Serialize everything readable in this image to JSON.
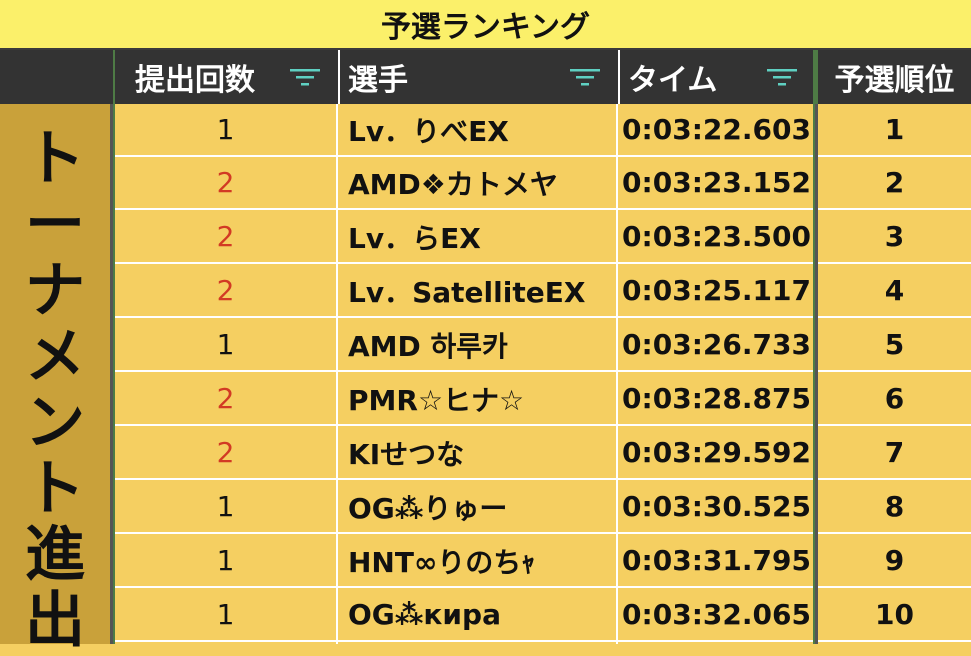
{
  "title": "予選ランキング",
  "side_label": [
    "ト",
    "ー",
    "ナ",
    "メ",
    "ン",
    "ト",
    "進",
    "出"
  ],
  "headers": {
    "submissions": "提出回数",
    "player": "選手",
    "time": "タイム",
    "rank": "予選順位"
  },
  "icons": {
    "filter": "filter-icon"
  },
  "colors": {
    "title_bg": "#fbf06a",
    "header_bg": "#333333",
    "cell_bg": "#f5cf61",
    "side_bg": "#c9a13a",
    "red_count": "#d23a24"
  },
  "rows": [
    {
      "count": "1",
      "name": "Lv．りべEX",
      "time": "0:03:22.603",
      "rank": "1"
    },
    {
      "count": "2",
      "name": "AMD❖カトメヤ",
      "time": "0:03:23.152",
      "rank": "2"
    },
    {
      "count": "2",
      "name": "Lv．らEX",
      "time": "0:03:23.500",
      "rank": "3"
    },
    {
      "count": "2",
      "name": "Lv．SatelliteEX",
      "time": "0:03:25.117",
      "rank": "4"
    },
    {
      "count": "1",
      "name": "AMD 하루카",
      "time": "0:03:26.733",
      "rank": "5"
    },
    {
      "count": "2",
      "name": "PMR☆ヒナ☆",
      "time": "0:03:28.875",
      "rank": "6"
    },
    {
      "count": "2",
      "name": "KIせつな",
      "time": "0:03:29.592",
      "rank": "7"
    },
    {
      "count": "1",
      "name": "OG⁂りゅー",
      "time": "0:03:30.525",
      "rank": "8"
    },
    {
      "count": "1",
      "name": "HNT∞りのちｬ",
      "time": "0:03:31.795",
      "rank": "9"
    },
    {
      "count": "1",
      "name": "OG⁂кира",
      "time": "0:03:32.065",
      "rank": "10"
    }
  ]
}
